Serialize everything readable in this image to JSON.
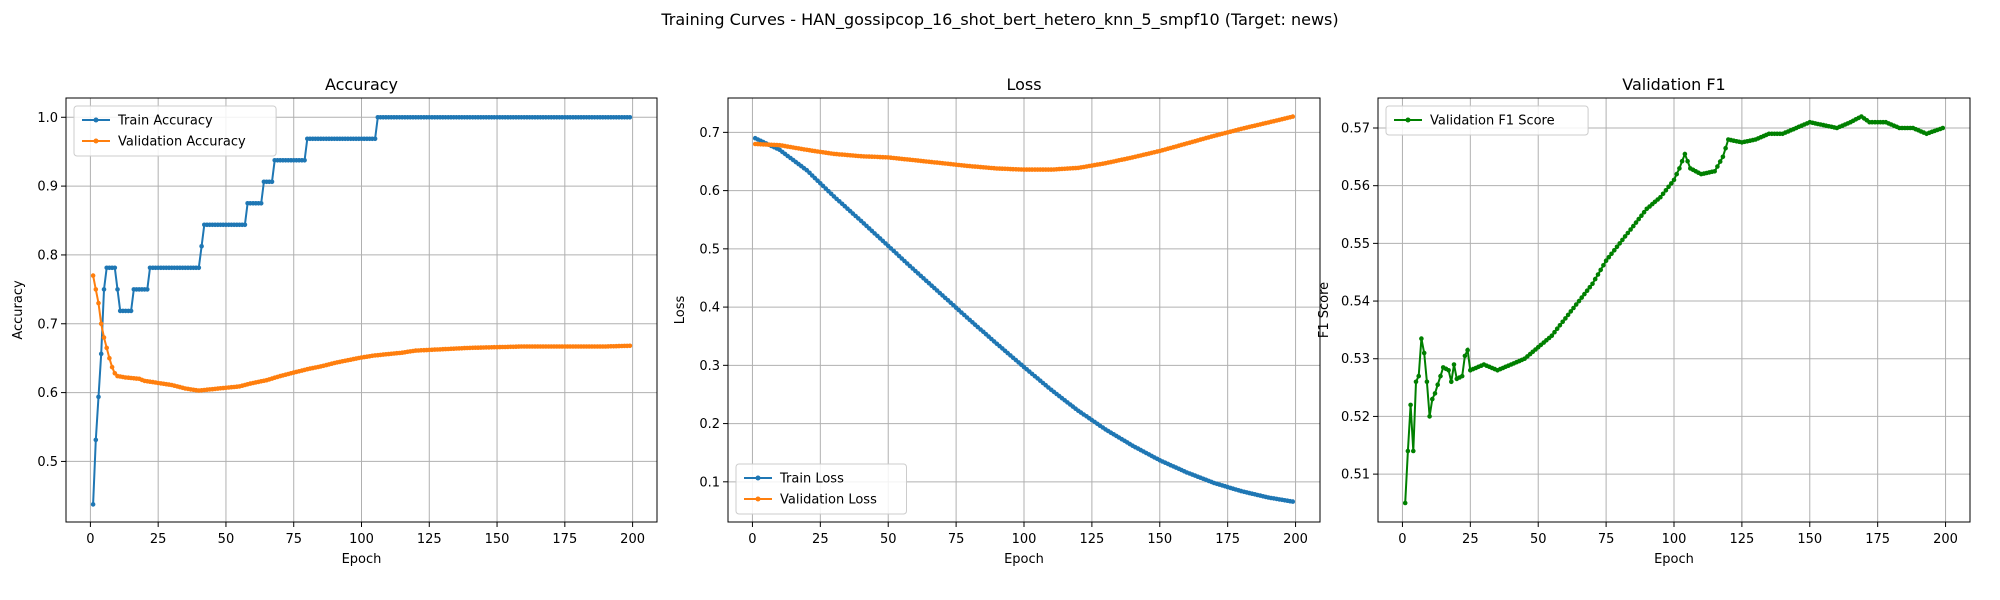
{
  "figure": {
    "suptitle": "Training Curves - HAN_gossipcop_16_shot_bert_hetero_knn_5_smpf10 (Target: news)"
  },
  "colors": {
    "blue": "#1f77b4",
    "orange": "#ff7f0e",
    "green": "#008000",
    "grid": "#b0b0b0"
  },
  "chart_data": [
    {
      "type": "line",
      "title": "Accuracy",
      "xlabel": "Epoch",
      "ylabel": "Accuracy",
      "xlim": [
        -9,
        209
      ],
      "ylim": [
        0.412,
        1.028
      ],
      "xticks": [
        0,
        25,
        50,
        75,
        100,
        125,
        150,
        175,
        200
      ],
      "yticks": [
        0.5,
        0.6,
        0.7,
        0.8,
        0.9,
        1.0
      ],
      "ytick_labels": [
        "0.5",
        "0.6",
        "0.7",
        "0.8",
        "0.9",
        "1.0"
      ],
      "grid": true,
      "legend": "upper left",
      "series": [
        {
          "name": "Train Accuracy",
          "color": "#1f77b4",
          "segments": [
            [
              1,
              0.4375
            ],
            [
              2,
              0.53125
            ],
            [
              3,
              0.59375
            ],
            [
              4,
              0.65625
            ],
            [
              5,
              0.75
            ],
            [
              6,
              0.78125
            ],
            [
              9,
              0.78125
            ],
            [
              10,
              0.75
            ],
            [
              11,
              0.71875
            ],
            [
              15,
              0.71875
            ],
            [
              16,
              0.75
            ],
            [
              21,
              0.75
            ],
            [
              22,
              0.78125
            ],
            [
              40,
              0.78125
            ],
            [
              41,
              0.8125
            ],
            [
              42,
              0.84375
            ],
            [
              57,
              0.84375
            ],
            [
              58,
              0.875
            ],
            [
              63,
              0.875
            ],
            [
              64,
              0.90625
            ],
            [
              67,
              0.90625
            ],
            [
              68,
              0.9375
            ],
            [
              79,
              0.9375
            ],
            [
              80,
              0.96875
            ],
            [
              105,
              0.96875
            ],
            [
              106,
              1.0
            ],
            [
              199,
              1.0
            ]
          ]
        },
        {
          "name": "Validation Accuracy",
          "color": "#ff7f0e",
          "segments": [
            [
              1,
              0.77
            ],
            [
              2,
              0.75
            ],
            [
              3,
              0.73
            ],
            [
              4,
              0.7
            ],
            [
              5,
              0.68
            ],
            [
              6,
              0.665
            ],
            [
              7,
              0.65
            ],
            [
              8,
              0.637
            ],
            [
              9,
              0.628
            ],
            [
              10,
              0.624
            ],
            [
              13,
              0.622
            ],
            [
              18,
              0.62
            ],
            [
              20,
              0.617
            ],
            [
              25,
              0.614
            ],
            [
              30,
              0.611
            ],
            [
              35,
              0.606
            ],
            [
              38,
              0.604
            ],
            [
              40,
              0.603
            ],
            [
              45,
              0.605
            ],
            [
              50,
              0.607
            ],
            [
              55,
              0.609
            ],
            [
              60,
              0.614
            ],
            [
              65,
              0.618
            ],
            [
              70,
              0.624
            ],
            [
              75,
              0.629
            ],
            [
              80,
              0.634
            ],
            [
              85,
              0.638
            ],
            [
              90,
              0.643
            ],
            [
              95,
              0.647
            ],
            [
              100,
              0.651
            ],
            [
              105,
              0.654
            ],
            [
              110,
              0.656
            ],
            [
              115,
              0.658
            ],
            [
              120,
              0.661
            ],
            [
              125,
              0.662
            ],
            [
              130,
              0.663
            ],
            [
              140,
              0.665
            ],
            [
              150,
              0.666
            ],
            [
              160,
              0.667
            ],
            [
              170,
              0.667
            ],
            [
              180,
              0.667
            ],
            [
              190,
              0.667
            ],
            [
              199,
              0.668
            ]
          ]
        }
      ]
    },
    {
      "type": "line",
      "title": "Loss",
      "xlabel": "Epoch",
      "ylabel": "Loss",
      "xlim": [
        -9,
        209
      ],
      "ylim": [
        0.031,
        0.759
      ],
      "xticks": [
        0,
        25,
        50,
        75,
        100,
        125,
        150,
        175,
        200
      ],
      "yticks": [
        0.1,
        0.2,
        0.3,
        0.4,
        0.5,
        0.6,
        0.7
      ],
      "ytick_labels": [
        "0.1",
        "0.2",
        "0.3",
        "0.4",
        "0.5",
        "0.6",
        "0.7"
      ],
      "grid": true,
      "legend": "lower left",
      "series": [
        {
          "name": "Train Loss",
          "color": "#1f77b4",
          "segments": [
            [
              1,
              0.69
            ],
            [
              10,
              0.67
            ],
            [
              20,
              0.635
            ],
            [
              30,
              0.59
            ],
            [
              40,
              0.548
            ],
            [
              50,
              0.505
            ],
            [
              60,
              0.462
            ],
            [
              70,
              0.42
            ],
            [
              80,
              0.378
            ],
            [
              90,
              0.337
            ],
            [
              100,
              0.297
            ],
            [
              110,
              0.258
            ],
            [
              120,
              0.222
            ],
            [
              130,
              0.19
            ],
            [
              140,
              0.162
            ],
            [
              150,
              0.137
            ],
            [
              160,
              0.116
            ],
            [
              170,
              0.098
            ],
            [
              180,
              0.084
            ],
            [
              190,
              0.073
            ],
            [
              199,
              0.066
            ]
          ]
        },
        {
          "name": "Validation Loss",
          "color": "#ff7f0e",
          "segments": [
            [
              1,
              0.68
            ],
            [
              10,
              0.678
            ],
            [
              20,
              0.67
            ],
            [
              30,
              0.663
            ],
            [
              40,
              0.659
            ],
            [
              50,
              0.657
            ],
            [
              60,
              0.652
            ],
            [
              70,
              0.647
            ],
            [
              80,
              0.642
            ],
            [
              90,
              0.638
            ],
            [
              100,
              0.636
            ],
            [
              110,
              0.636
            ],
            [
              120,
              0.639
            ],
            [
              130,
              0.647
            ],
            [
              140,
              0.657
            ],
            [
              150,
              0.668
            ],
            [
              160,
              0.681
            ],
            [
              170,
              0.694
            ],
            [
              180,
              0.706
            ],
            [
              190,
              0.717
            ],
            [
              199,
              0.727
            ]
          ]
        }
      ]
    },
    {
      "type": "line",
      "title": "Validation F1",
      "xlabel": "Epoch",
      "ylabel": "F1 Score",
      "xlim": [
        -9,
        209
      ],
      "ylim": [
        0.5017,
        0.5752
      ],
      "xticks": [
        0,
        25,
        50,
        75,
        100,
        125,
        150,
        175,
        200
      ],
      "yticks": [
        0.51,
        0.52,
        0.53,
        0.54,
        0.55,
        0.56,
        0.57
      ],
      "ytick_labels": [
        "0.51",
        "0.52",
        "0.53",
        "0.54",
        "0.55",
        "0.56",
        "0.57"
      ],
      "grid": true,
      "legend": "upper left",
      "series": [
        {
          "name": "Validation F1 Score",
          "color": "#008000",
          "segments": [
            [
              1,
              0.505
            ],
            [
              2,
              0.514
            ],
            [
              3,
              0.522
            ],
            [
              4,
              0.514
            ],
            [
              5,
              0.526
            ],
            [
              6,
              0.527
            ],
            [
              7,
              0.5335
            ],
            [
              8,
              0.531
            ],
            [
              9,
              0.526
            ],
            [
              10,
              0.52
            ],
            [
              11,
              0.523
            ],
            [
              12,
              0.524
            ],
            [
              14,
              0.527
            ],
            [
              15,
              0.5285
            ],
            [
              17,
              0.528
            ],
            [
              18,
              0.526
            ],
            [
              19,
              0.529
            ],
            [
              20,
              0.5265
            ],
            [
              22,
              0.527
            ],
            [
              23,
              0.5305
            ],
            [
              24,
              0.5315
            ],
            [
              25,
              0.528
            ],
            [
              30,
              0.529
            ],
            [
              35,
              0.528
            ],
            [
              40,
              0.529
            ],
            [
              45,
              0.53
            ],
            [
              50,
              0.532
            ],
            [
              55,
              0.534
            ],
            [
              60,
              0.537
            ],
            [
              65,
              0.54
            ],
            [
              70,
              0.543
            ],
            [
              75,
              0.547
            ],
            [
              80,
              0.55
            ],
            [
              85,
              0.553
            ],
            [
              90,
              0.556
            ],
            [
              95,
              0.558
            ],
            [
              100,
              0.561
            ],
            [
              102,
              0.563
            ],
            [
              104,
              0.5655
            ],
            [
              106,
              0.563
            ],
            [
              110,
              0.562
            ],
            [
              115,
              0.5625
            ],
            [
              118,
              0.565
            ],
            [
              120,
              0.568
            ],
            [
              125,
              0.5675
            ],
            [
              130,
              0.568
            ],
            [
              135,
              0.569
            ],
            [
              140,
              0.569
            ],
            [
              145,
              0.57
            ],
            [
              150,
              0.571
            ],
            [
              155,
              0.5705
            ],
            [
              160,
              0.57
            ],
            [
              165,
              0.571
            ],
            [
              169,
              0.572
            ],
            [
              172,
              0.571
            ],
            [
              178,
              0.571
            ],
            [
              183,
              0.57
            ],
            [
              188,
              0.57
            ],
            [
              193,
              0.569
            ],
            [
              199,
              0.57
            ]
          ]
        }
      ]
    }
  ]
}
